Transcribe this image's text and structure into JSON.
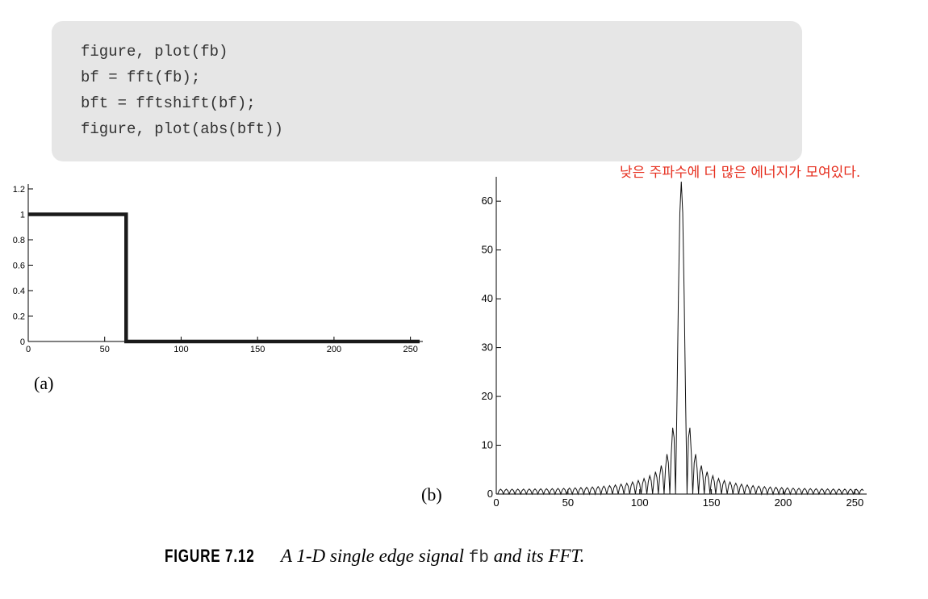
{
  "code": {
    "lines": [
      "figure, plot(fb)",
      "bf = fft(fb);",
      "bft = fftshift(bf);",
      "figure, plot(abs(bft))"
    ]
  },
  "annotation": {
    "text": "낮은 주파수에 더 많은 에너지가 모여있다.",
    "color": "#e62e1e"
  },
  "caption": {
    "figure_label": "FIGURE 7.12",
    "text_before": "A 1-D single edge signal ",
    "code_word": "fb",
    "text_after": " and its FFT."
  },
  "chart_data": [
    {
      "type": "line",
      "panel_label": "(a)",
      "title": "",
      "xlabel": "",
      "ylabel": "",
      "xlim": [
        0,
        256
      ],
      "ylim": [
        0,
        1.2
      ],
      "xticks": [
        0,
        50,
        100,
        150,
        200,
        250
      ],
      "yticks": [
        0,
        0.2,
        0.4,
        0.6,
        0.8,
        1,
        1.2
      ],
      "ytick_labels": [
        "0",
        "0.2",
        "0.4",
        "0.6",
        "0.8",
        "1",
        "1.2"
      ],
      "grid": false,
      "series": [
        {
          "x": [
            0,
            64,
            64,
            256
          ],
          "y": [
            1,
            1,
            0,
            0
          ]
        }
      ]
    },
    {
      "type": "line",
      "panel_label": "(b)",
      "title": "",
      "xlabel": "",
      "ylabel": "",
      "xlim": [
        0,
        256
      ],
      "ylim": [
        0,
        64
      ],
      "xticks": [
        0,
        50,
        100,
        150,
        200,
        250
      ],
      "yticks": [
        0,
        10,
        20,
        30,
        40,
        50,
        60
      ],
      "ytick_labels": [
        "0",
        "10",
        "20",
        "30",
        "40",
        "50",
        "60"
      ],
      "grid": false,
      "series": [
        {
          "description_free": true,
          "formula_samples": {
            "n": 256,
            "edge": 64,
            "peak_index": 128,
            "peak_value": 64
          }
        }
      ]
    }
  ]
}
